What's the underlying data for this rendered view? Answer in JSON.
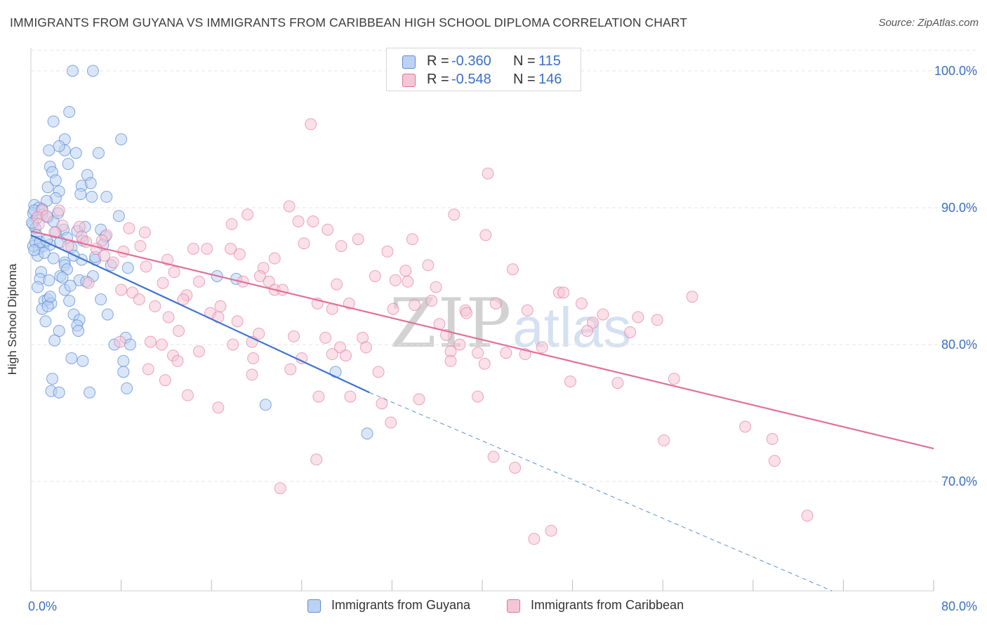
{
  "title": "IMMIGRANTS FROM GUYANA VS IMMIGRANTS FROM CARIBBEAN HIGH SCHOOL DIPLOMA CORRELATION CHART",
  "source": "Source: ZipAtlas.com",
  "watermark": {
    "zip": "ZIP",
    "atlas": "atlas"
  },
  "colors": {
    "blue": "#5b8ed6",
    "blue_fill": "#bcd2f3",
    "pink": "#e0709a",
    "pink_fill": "#f6c6d6",
    "axis_text": "#3a6fc4",
    "grid": "#e6e6e6"
  },
  "legend": {
    "rows": [
      {
        "r_label": "R =",
        "r_value": "-0.360",
        "n_label": "N =",
        "n_value": "115"
      },
      {
        "r_label": "R =",
        "r_value": "-0.548",
        "n_label": "N =",
        "n_value": "146"
      }
    ]
  },
  "chart_data": {
    "type": "scatter",
    "title": "IMMIGRANTS FROM GUYANA VS IMMIGRANTS FROM CARIBBEAN HIGH SCHOOL DIPLOMA CORRELATION CHART",
    "xlabel": "",
    "ylabel": "High School Diploma",
    "xlim": [
      0,
      80
    ],
    "ylim": [
      62,
      102
    ],
    "x_tick_labels": [
      "0.0%",
      "80.0%"
    ],
    "y_ticks": [
      70,
      80,
      90,
      100
    ],
    "y_tick_labels": [
      "70.0%",
      "80.0%",
      "90.0%",
      "100.0%"
    ],
    "grid": true,
    "legend_position": "top-center",
    "series": [
      {
        "name": "Immigrants from Guyana",
        "color": "#5b8ed6",
        "r": -0.36,
        "n": 115,
        "trend": {
          "x0": 0,
          "y0": 88.0,
          "x1": 30,
          "y1": 76.5,
          "dashed_to_x": 71,
          "dashed_to_y": 62
        },
        "points": [
          [
            3.7,
            100
          ],
          [
            5.5,
            100
          ],
          [
            3.4,
            97
          ],
          [
            2,
            96.3
          ],
          [
            8,
            95
          ],
          [
            3,
            95
          ],
          [
            1.6,
            94.2
          ],
          [
            3,
            94.2
          ],
          [
            2.5,
            94.5
          ],
          [
            4,
            94
          ],
          [
            6,
            94
          ],
          [
            1.7,
            93
          ],
          [
            3.3,
            93.2
          ],
          [
            1.9,
            92.6
          ],
          [
            5,
            92.4
          ],
          [
            1.5,
            91.5
          ],
          [
            2.2,
            92
          ],
          [
            4.5,
            91.6
          ],
          [
            5.3,
            91.8
          ],
          [
            2.5,
            91.2
          ],
          [
            4.4,
            91
          ],
          [
            6.7,
            90.8
          ],
          [
            5.4,
            90.8
          ],
          [
            2.2,
            90.7
          ],
          [
            0.3,
            90.2
          ],
          [
            1.4,
            90.5
          ],
          [
            0.7,
            90
          ],
          [
            0.2,
            89.6
          ],
          [
            0.5,
            89.2
          ],
          [
            1,
            89.5
          ],
          [
            1.5,
            89.3
          ],
          [
            7.8,
            89.4
          ],
          [
            0.2,
            88.8
          ],
          [
            0.4,
            88.5
          ],
          [
            2,
            89
          ],
          [
            2.9,
            88.4
          ],
          [
            0.5,
            88
          ],
          [
            6.2,
            88.4
          ],
          [
            4.1,
            88.3
          ],
          [
            3.2,
            87.8
          ],
          [
            6.6,
            87.9
          ],
          [
            4.6,
            87.6
          ],
          [
            0.2,
            87.2
          ],
          [
            0.4,
            87.5
          ],
          [
            0.7,
            87
          ],
          [
            1.1,
            87.2
          ],
          [
            1.7,
            87.3
          ],
          [
            2.6,
            87.5
          ],
          [
            6.4,
            87.3
          ],
          [
            3.6,
            87.1
          ],
          [
            0.6,
            86.5
          ],
          [
            1.2,
            86.7
          ],
          [
            2,
            86.3
          ],
          [
            3,
            86
          ],
          [
            4.5,
            86.2
          ],
          [
            5.7,
            86.2
          ],
          [
            3,
            85.8
          ],
          [
            7.1,
            85.8
          ],
          [
            8.6,
            85.6
          ],
          [
            0.9,
            85.3
          ],
          [
            3.2,
            85.5
          ],
          [
            5.5,
            85
          ],
          [
            0.8,
            84.8
          ],
          [
            1.6,
            84.7
          ],
          [
            2.6,
            85
          ],
          [
            4.3,
            84.7
          ],
          [
            16.5,
            85
          ],
          [
            18.2,
            84.8
          ],
          [
            0.6,
            84.2
          ],
          [
            3,
            84
          ],
          [
            3.5,
            84.3
          ],
          [
            1.2,
            83.2
          ],
          [
            1.5,
            83.3
          ],
          [
            1.8,
            83
          ],
          [
            6.2,
            83.3
          ],
          [
            1,
            82.6
          ],
          [
            1.5,
            82.8
          ],
          [
            3.8,
            82.2
          ],
          [
            4.3,
            81.8
          ],
          [
            6.8,
            82.2
          ],
          [
            1.3,
            81.7
          ],
          [
            2.5,
            81
          ],
          [
            4.1,
            81.4
          ],
          [
            4.2,
            81
          ],
          [
            8.4,
            80.5
          ],
          [
            2.1,
            80.3
          ],
          [
            7.4,
            80
          ],
          [
            8.8,
            80
          ],
          [
            3.6,
            79
          ],
          [
            4.6,
            78.8
          ],
          [
            8.2,
            78.8
          ],
          [
            8.2,
            78
          ],
          [
            27,
            78
          ],
          [
            1.9,
            77.5
          ],
          [
            8.5,
            76.8
          ],
          [
            1.8,
            76.6
          ],
          [
            2.5,
            76.5
          ],
          [
            5.2,
            76.5
          ],
          [
            20.8,
            75.6
          ],
          [
            29.8,
            73.5
          ],
          [
            0.3,
            89.8
          ],
          [
            1,
            89.9
          ],
          [
            2.4,
            89.6
          ],
          [
            0.1,
            88.9
          ],
          [
            0.8,
            87.5
          ],
          [
            1.4,
            87.6
          ],
          [
            3.8,
            86.5
          ],
          [
            5.7,
            86.4
          ],
          [
            2.2,
            88.2
          ],
          [
            4.8,
            88.6
          ],
          [
            0.3,
            86.9
          ],
          [
            2.8,
            84.9
          ],
          [
            4.9,
            84.6
          ],
          [
            1.7,
            83.5
          ],
          [
            3.4,
            83.2
          ]
        ]
      },
      {
        "name": "Immigrants from Caribbean",
        "color": "#e0709a",
        "r": -0.548,
        "n": 146,
        "trend": {
          "x0": 0,
          "y0": 88.3,
          "x1": 80,
          "y1": 72.4
        },
        "points": [
          [
            24.8,
            96.1
          ],
          [
            40.5,
            92.5
          ],
          [
            1,
            89.8
          ],
          [
            2.5,
            89.8
          ],
          [
            0.6,
            89.3
          ],
          [
            1.4,
            89.4
          ],
          [
            19.2,
            89.5
          ],
          [
            22.9,
            90.1
          ],
          [
            23.7,
            89
          ],
          [
            25,
            89
          ],
          [
            0.7,
            88.8
          ],
          [
            2.8,
            88.7
          ],
          [
            4.3,
            88.6
          ],
          [
            17.8,
            88.8
          ],
          [
            8.7,
            88.5
          ],
          [
            26.3,
            88.4
          ],
          [
            2.1,
            88.2
          ],
          [
            4.5,
            87.9
          ],
          [
            6.7,
            88
          ],
          [
            40.3,
            88
          ],
          [
            29,
            87.7
          ],
          [
            33.8,
            87.7
          ],
          [
            4.9,
            87.5
          ],
          [
            6.3,
            87.6
          ],
          [
            9.7,
            87.2
          ],
          [
            24.2,
            87.4
          ],
          [
            27.5,
            87.2
          ],
          [
            3.3,
            87.2
          ],
          [
            5.8,
            87
          ],
          [
            14.4,
            87
          ],
          [
            15.6,
            87
          ],
          [
            17.7,
            87
          ],
          [
            8.2,
            86.8
          ],
          [
            18.5,
            86.6
          ],
          [
            6.5,
            86.5
          ],
          [
            7.3,
            86
          ],
          [
            12.1,
            86.2
          ],
          [
            35.2,
            85.8
          ],
          [
            42.7,
            85.5
          ],
          [
            10.2,
            85.7
          ],
          [
            20.6,
            85.6
          ],
          [
            12.7,
            85.3
          ],
          [
            20.3,
            85
          ],
          [
            14.9,
            84.6
          ],
          [
            18.8,
            84.6
          ],
          [
            21.1,
            84.6
          ],
          [
            32.3,
            84.7
          ],
          [
            33.4,
            84.6
          ],
          [
            5.1,
            84.5
          ],
          [
            11.7,
            84.5
          ],
          [
            35.9,
            84.2
          ],
          [
            21.6,
            84
          ],
          [
            22.3,
            84
          ],
          [
            8,
            84
          ],
          [
            9,
            83.8
          ],
          [
            13.8,
            83.6
          ],
          [
            46.8,
            83.8
          ],
          [
            47.2,
            83.8
          ],
          [
            58.6,
            83.5
          ],
          [
            13.5,
            83.3
          ],
          [
            9.6,
            83.3
          ],
          [
            25.4,
            83
          ],
          [
            28.2,
            83
          ],
          [
            32.1,
            82.6
          ],
          [
            34,
            82.9
          ],
          [
            35.5,
            83.2
          ],
          [
            11,
            82.8
          ],
          [
            16.8,
            82.8
          ],
          [
            48.8,
            83
          ],
          [
            38.5,
            82.5
          ],
          [
            44,
            82.5
          ],
          [
            15.9,
            82.3
          ],
          [
            38.6,
            82.3
          ],
          [
            50.7,
            82.2
          ],
          [
            53.8,
            82
          ],
          [
            12.2,
            82
          ],
          [
            16.6,
            82
          ],
          [
            18.3,
            81.7
          ],
          [
            36.2,
            81.5
          ],
          [
            49.8,
            81.6
          ],
          [
            55.5,
            81.8
          ],
          [
            13.1,
            81
          ],
          [
            20.2,
            80.8
          ],
          [
            23.3,
            80.6
          ],
          [
            26.1,
            80.5
          ],
          [
            29.4,
            80.5
          ],
          [
            49.3,
            81
          ],
          [
            7.9,
            80.2
          ],
          [
            10.6,
            80.2
          ],
          [
            11.6,
            80
          ],
          [
            17.9,
            80
          ],
          [
            19.6,
            80.2
          ],
          [
            27.4,
            79.8
          ],
          [
            29.7,
            79.8
          ],
          [
            38,
            80
          ],
          [
            14.9,
            79.5
          ],
          [
            26.7,
            79.3
          ],
          [
            27.9,
            79.2
          ],
          [
            37.2,
            79.5
          ],
          [
            39.6,
            79.4
          ],
          [
            42.1,
            79.4
          ],
          [
            43.8,
            79.3
          ],
          [
            12.6,
            79.2
          ],
          [
            19.7,
            79
          ],
          [
            24,
            79
          ],
          [
            37.2,
            78.8
          ],
          [
            13,
            78.8
          ],
          [
            40.2,
            78.6
          ],
          [
            10.4,
            78.2
          ],
          [
            23,
            78.2
          ],
          [
            30.8,
            78
          ],
          [
            19.6,
            77.8
          ],
          [
            57,
            77.5
          ],
          [
            11.9,
            77.4
          ],
          [
            47.8,
            77.3
          ],
          [
            52,
            77.2
          ],
          [
            13.9,
            76.3
          ],
          [
            25.5,
            76.2
          ],
          [
            28.3,
            76.2
          ],
          [
            34.4,
            76
          ],
          [
            39.6,
            76.2
          ],
          [
            31.1,
            75.7
          ],
          [
            16.6,
            75.4
          ],
          [
            31.9,
            74.3
          ],
          [
            63.3,
            74
          ],
          [
            56.1,
            73
          ],
          [
            65.7,
            73.1
          ],
          [
            25.3,
            71.6
          ],
          [
            41,
            71.8
          ],
          [
            42.9,
            71
          ],
          [
            65.9,
            71.5
          ],
          [
            22.1,
            69.5
          ],
          [
            68.8,
            67.5
          ],
          [
            46.1,
            66.4
          ],
          [
            44.6,
            65.8
          ],
          [
            37.5,
            89.5
          ],
          [
            41.2,
            83
          ],
          [
            30.5,
            85
          ],
          [
            27.1,
            84.4
          ],
          [
            36.8,
            80.7
          ],
          [
            45.3,
            79.8
          ],
          [
            53.1,
            80.9
          ],
          [
            10.1,
            88.2
          ],
          [
            21.6,
            86.3
          ],
          [
            31.6,
            86.8
          ],
          [
            26.7,
            82.6
          ],
          [
            33.2,
            85.4
          ]
        ]
      }
    ]
  },
  "bottom_legend": [
    {
      "label": "Immigrants from Guyana"
    },
    {
      "label": "Immigrants from Caribbean"
    }
  ]
}
